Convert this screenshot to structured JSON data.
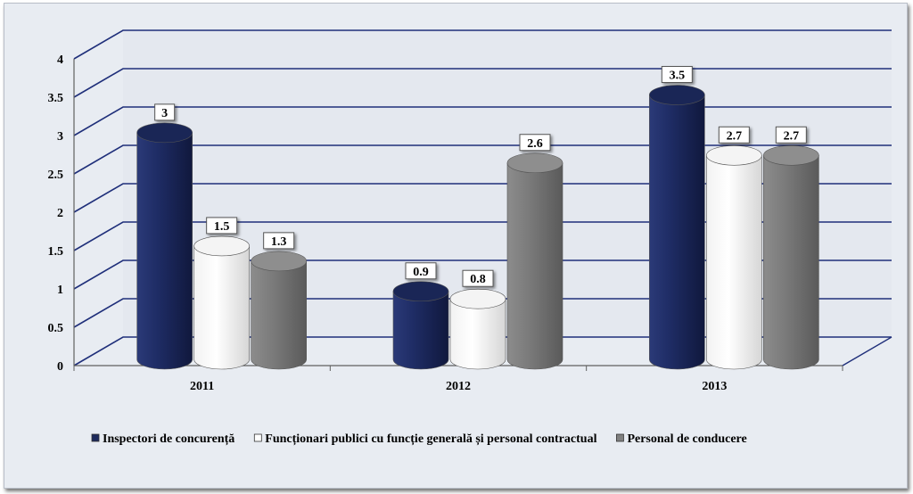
{
  "chart_data": {
    "type": "bar",
    "title": "",
    "xlabel": "",
    "ylabel": "",
    "ylim": [
      0,
      4
    ],
    "yticks": [
      0,
      0.5,
      1,
      1.5,
      2,
      2.5,
      3,
      3.5,
      4
    ],
    "categories": [
      "2011",
      "2012",
      "2013"
    ],
    "series": [
      {
        "name": "Inspectori de concurență",
        "values": [
          3,
          0.9,
          3.5
        ],
        "color": "#1d2a5c"
      },
      {
        "name": "Funcționari publici cu funcție generală și personal contractual",
        "values": [
          1.5,
          0.8,
          2.7
        ],
        "color": "#ffffff"
      },
      {
        "name": "Personal de conducere",
        "values": [
          1.3,
          2.6,
          2.7
        ],
        "color": "#808080"
      }
    ],
    "grid": true,
    "legend_position": "bottom"
  }
}
